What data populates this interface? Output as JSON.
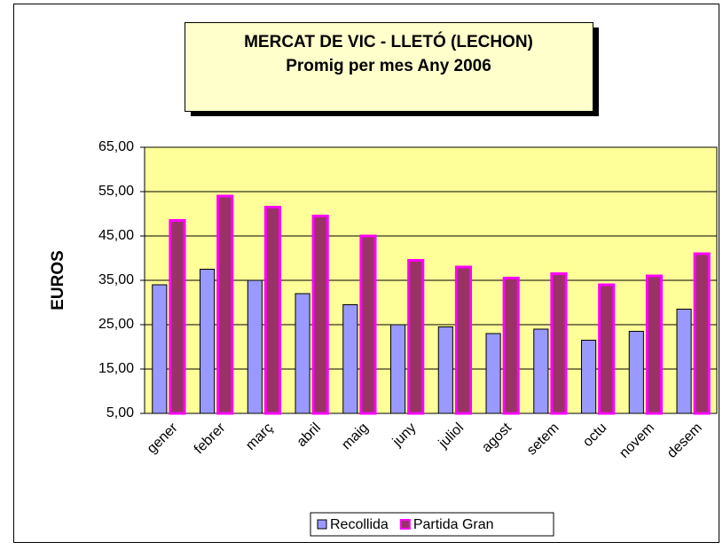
{
  "chart_data": {
    "type": "bar",
    "title": "MERCAT DE VIC - LLETÓ (LECHON)",
    "subtitle": "Promig per mes Any 2006",
    "y_label": "EUROS",
    "categories": [
      "gener",
      "febrer",
      "març",
      "abril",
      "maig",
      "juny",
      "juliol",
      "agost",
      "setem",
      "octu",
      "novem",
      "desem"
    ],
    "series": [
      {
        "name": "Recollida",
        "color": "#9999ff",
        "values": [
          34,
          37.5,
          35,
          32,
          29.5,
          25,
          24.5,
          23,
          24,
          21.5,
          23.5,
          28.5
        ]
      },
      {
        "name": "Partida Gran",
        "color": "#993366",
        "values": [
          48.5,
          54,
          51.5,
          49.5,
          45,
          39.5,
          38,
          35.5,
          36.5,
          34,
          36,
          41
        ]
      }
    ],
    "ylim": [
      5,
      65
    ],
    "yticks": [
      {
        "value": 5,
        "label": "5,00"
      },
      {
        "value": 15,
        "label": "15,00"
      },
      {
        "value": 25,
        "label": "25,00"
      },
      {
        "value": 35,
        "label": "35,00"
      },
      {
        "value": 45,
        "label": "45,00"
      },
      {
        "value": 55,
        "label": "55,00"
      },
      {
        "value": 65,
        "label": "65,00"
      }
    ],
    "grid": true,
    "legend": "bottom"
  }
}
